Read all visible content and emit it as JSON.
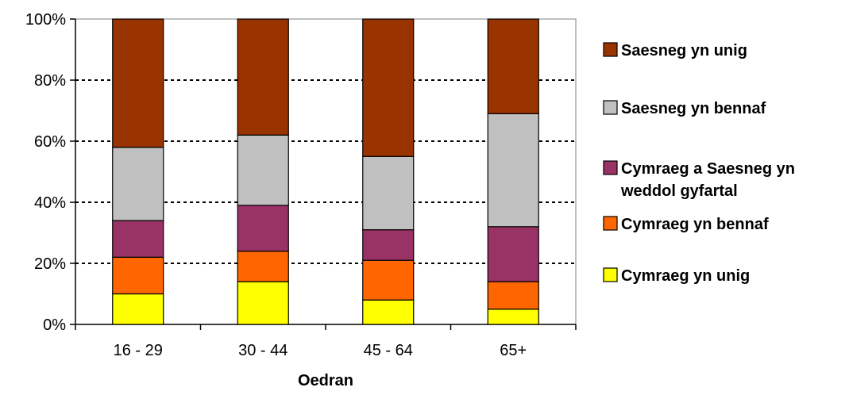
{
  "chart_data": {
    "type": "bar",
    "stacked": true,
    "categories": [
      "16 - 29",
      "30 - 44",
      "45 - 64",
      "65+"
    ],
    "series": [
      {
        "name": "Cymraeg yn unig",
        "color": "#ffff00",
        "values": [
          10,
          14,
          8,
          5
        ]
      },
      {
        "name": "Cymraeg yn bennaf",
        "color": "#ff6600",
        "values": [
          12,
          10,
          13,
          9
        ]
      },
      {
        "name": "Cymraeg a Saesneg yn weddol gyfartal",
        "color": "#993366",
        "values": [
          12,
          15,
          10,
          18
        ]
      },
      {
        "name": "Saesneg yn bennaf",
        "color": "#c0c0c0",
        "values": [
          24,
          23,
          24,
          37
        ]
      },
      {
        "name": "Saesneg yn unig",
        "color": "#993300",
        "values": [
          42,
          38,
          45,
          31
        ]
      }
    ],
    "ytick_labels": [
      "0%",
      "20%",
      "40%",
      "60%",
      "80%",
      "100%"
    ],
    "ylim": [
      0,
      100
    ],
    "xlabel": "Oedran",
    "ylabel": "",
    "title": "",
    "grid": "horizontal dotted",
    "legend_position": "right",
    "legend_lines": {
      "Cymraeg a Saesneg yn weddol gyfartal": [
        "Cymraeg a Saesneg yn",
        "weddol gyfartal"
      ]
    }
  }
}
